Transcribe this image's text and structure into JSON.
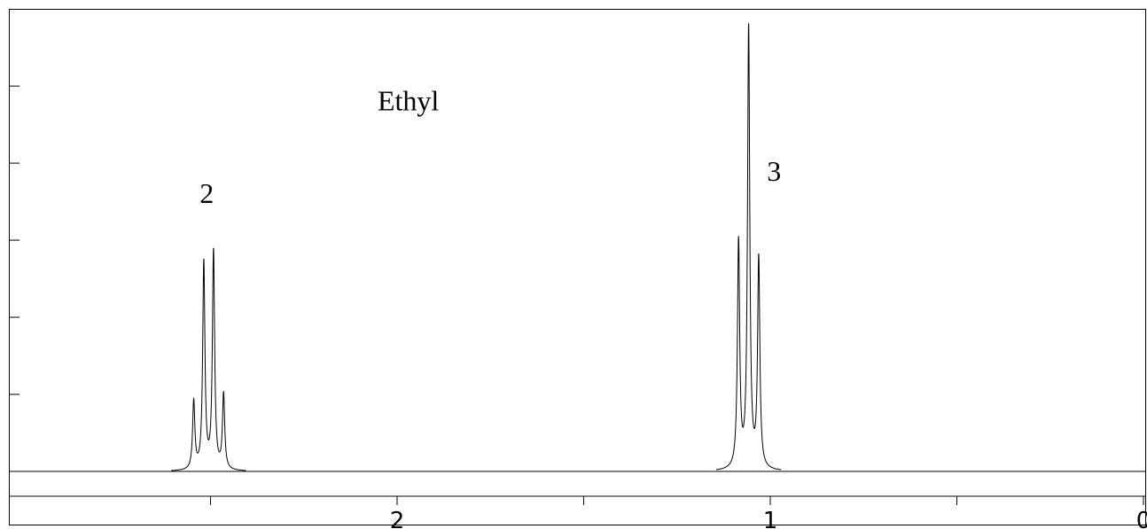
{
  "chart_data": {
    "type": "line",
    "title": "",
    "xlabel": "",
    "ylabel": "",
    "x_reversed": true,
    "xlim": [
      0,
      3
    ],
    "ylim": [
      0,
      100
    ],
    "x_ticks": [
      {
        "value": 0,
        "label": "0"
      },
      {
        "value": 0.5,
        "label": ""
      },
      {
        "value": 1,
        "label": "1"
      },
      {
        "value": 1.5,
        "label": ""
      },
      {
        "value": 2,
        "label": "2"
      },
      {
        "value": 2.5,
        "label": ""
      }
    ],
    "y_ticks": [
      0,
      17.5,
      35,
      52.5,
      70,
      87.5
    ],
    "annotations": [
      {
        "text": "Ethyl",
        "x": 1.97,
        "y": 82
      },
      {
        "text": "2",
        "x": 2.51,
        "y": 61
      },
      {
        "text": "3",
        "x": 0.99,
        "y": 66
      }
    ],
    "series": [
      {
        "peaks": [
          {
            "x": 2.545,
            "y": 15.5
          },
          {
            "x": 2.518,
            "y": 47
          },
          {
            "x": 2.492,
            "y": 49.5
          },
          {
            "x": 2.465,
            "y": 17
          }
        ]
      },
      {
        "peaks": [
          {
            "x": 1.085,
            "y": 51.5
          },
          {
            "x": 1.058,
            "y": 100
          },
          {
            "x": 1.031,
            "y": 47.5
          }
        ]
      }
    ],
    "grid": false,
    "legend": "none"
  }
}
